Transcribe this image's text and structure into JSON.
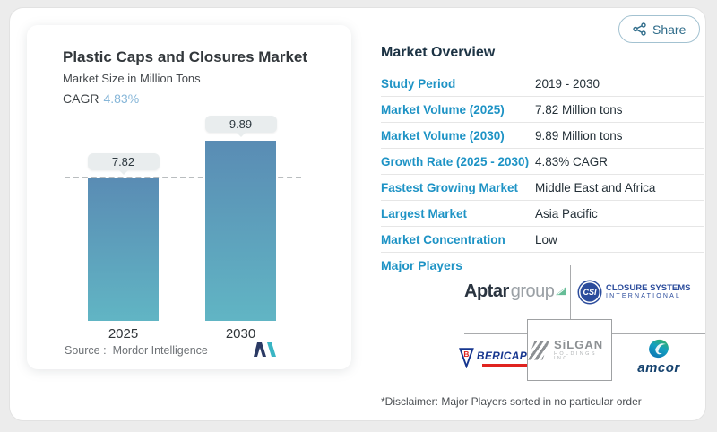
{
  "share": {
    "label": "Share"
  },
  "chart_card": {
    "title": "Plastic Caps and Closures Market",
    "subtitle": "Market Size in Million Tons",
    "cagr_label": "CAGR",
    "cagr_value": "4.83%",
    "source_label": "Source :",
    "source_value": "Mordor Intelligence"
  },
  "chart_data": {
    "type": "bar",
    "title": "Plastic Caps and Closures Market",
    "subtitle": "Market Size in Million Tons",
    "categories": [
      "2025",
      "2030"
    ],
    "values": [
      7.82,
      9.89
    ],
    "bar_labels": [
      "7.82",
      "9.89"
    ],
    "unit": "Million Tons",
    "reference_line": 7.82,
    "ylim": [
      0,
      11
    ],
    "grid": false,
    "bar_gradient_top": "#5a8cb4",
    "bar_gradient_bottom": "#61b5c4"
  },
  "overview": {
    "heading": "Market Overview",
    "rows": [
      {
        "label": "Study Period",
        "value": "2019 - 2030"
      },
      {
        "label": "Market Volume (2025)",
        "value": "7.82 Million tons"
      },
      {
        "label": "Market Volume (2030)",
        "value": "9.89 Million tons"
      },
      {
        "label": "Growth Rate (2025 - 2030)",
        "value": "4.83% CAGR"
      },
      {
        "label": "Fastest Growing Market",
        "value": "Middle East and Africa"
      },
      {
        "label": "Largest Market",
        "value": "Asia Pacific"
      },
      {
        "label": "Market Concentration",
        "value": "Low"
      }
    ],
    "major_players_label": "Major Players",
    "disclaimer": "*Disclaimer: Major Players sorted in no particular order"
  },
  "logos": {
    "aptar": {
      "name": "AptarGroup",
      "part_bold": "Aptar",
      "part_light": "group"
    },
    "csi": {
      "name": "Closure Systems International",
      "badge": "CSI",
      "line1": "CLOSURE SYSTEMS",
      "line2": "INTERNATIONAL"
    },
    "bericap": {
      "name": "Bericap",
      "badge": "B",
      "text": "BERICAP"
    },
    "silgan": {
      "name": "Silgan Holdings Inc",
      "text": "SiLGAN",
      "sub": "HOLDINGS INC"
    },
    "amcor": {
      "name": "Amcor",
      "text": "amcor"
    }
  },
  "colors": {
    "accent_blue": "#1e93c5",
    "heading_navy": "#1c3344",
    "cagr_blue": "#86b6d8",
    "pill_bg": "#e9edee",
    "share_blue": "#2f6c8a",
    "background": "#ececec"
  }
}
